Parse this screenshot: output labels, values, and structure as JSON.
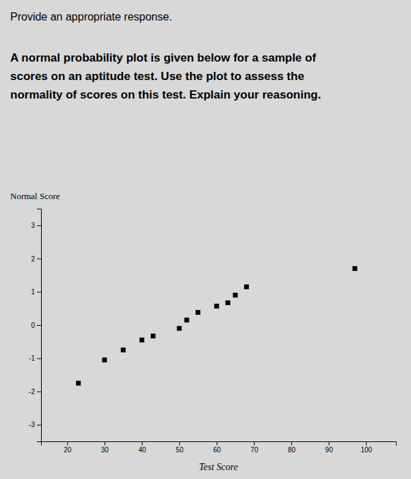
{
  "chart_data": {
    "type": "scatter",
    "title": "Provide an appropriate response.",
    "annotations": [
      "A normal probability plot is given below for a sample of\nscores on an aptitude test. Use the plot to assess the\nnormality of scores on this test. Explain your reasoning."
    ],
    "xlabel": "Test Score",
    "ylabel": "Normal Score",
    "x": [
      23,
      30,
      35,
      40,
      43,
      50,
      52,
      55,
      60,
      63,
      65,
      68,
      97
    ],
    "values": [
      -1.75,
      -1.05,
      -0.75,
      -0.45,
      -0.33,
      -0.1,
      0.15,
      0.38,
      0.57,
      0.67,
      0.9,
      1.15,
      1.7
    ],
    "color": "black",
    "marker": "square",
    "xlim": [
      13,
      108
    ],
    "ylim": [
      -3.5,
      3.5
    ],
    "xticks": [
      20,
      30,
      40,
      50,
      60,
      70,
      80,
      90,
      100
    ],
    "yticks": [
      -3,
      -2,
      -1,
      0,
      1,
      2,
      3
    ],
    "grid": false
  }
}
